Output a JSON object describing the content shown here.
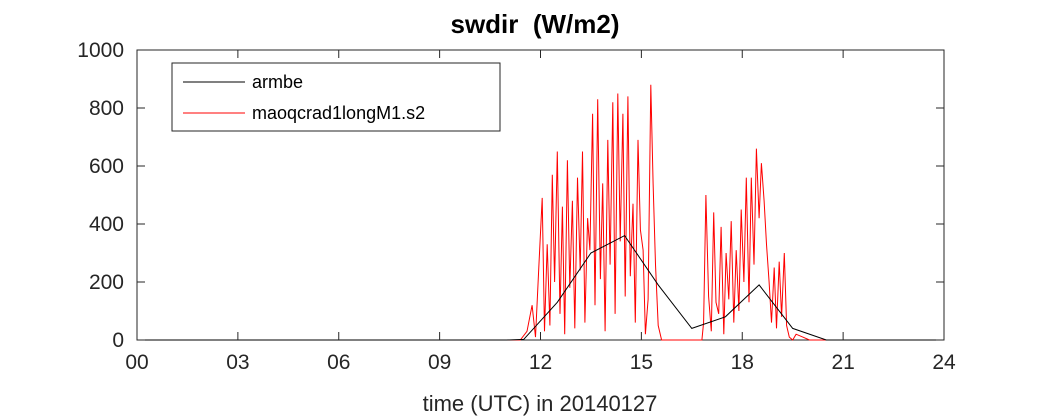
{
  "chart_data": {
    "type": "line",
    "title": "swdir  (W/m2)",
    "xlabel": "time (UTC) in 20140127",
    "ylabel": "",
    "xlim": [
      0,
      24
    ],
    "ylim": [
      0,
      1000
    ],
    "xticks": [
      0,
      3,
      6,
      9,
      12,
      15,
      18,
      21,
      24
    ],
    "xtick_labels": [
      "00",
      "03",
      "06",
      "09",
      "12",
      "15",
      "18",
      "21",
      "24"
    ],
    "yticks": [
      0,
      200,
      400,
      600,
      800,
      1000
    ],
    "ytick_labels": [
      "0",
      "200",
      "400",
      "600",
      "800",
      "1000"
    ],
    "grid": false,
    "legend_position": "top-left",
    "series": [
      {
        "name": "armbe",
        "color": "#000000",
        "x": [
          0,
          1,
          2,
          3,
          4,
          5,
          6,
          7,
          8,
          9,
          10,
          11,
          11.5,
          12.5,
          13.5,
          14.5,
          15.5,
          16.5,
          17.5,
          18.5,
          19.5,
          20.5,
          21,
          22,
          23,
          24
        ],
        "y": [
          0,
          0,
          0,
          0,
          0,
          0,
          0,
          0,
          0,
          0,
          0,
          0,
          2,
          130,
          300,
          360,
          190,
          40,
          80,
          190,
          40,
          0,
          0,
          0,
          0,
          0
        ]
      },
      {
        "name": "maoqcrad1longM1.s2",
        "color": "#ff0000",
        "x": [
          0,
          11.4,
          11.6,
          11.75,
          11.85,
          11.95,
          12.05,
          12.12,
          12.2,
          12.28,
          12.35,
          12.42,
          12.5,
          12.58,
          12.65,
          12.72,
          12.8,
          12.87,
          12.95,
          13.02,
          13.1,
          13.18,
          13.25,
          13.32,
          13.4,
          13.47,
          13.55,
          13.62,
          13.7,
          13.78,
          13.85,
          13.92,
          14.0,
          14.07,
          14.15,
          14.22,
          14.3,
          14.37,
          14.45,
          14.52,
          14.6,
          14.67,
          14.75,
          14.82,
          14.9,
          14.97,
          15.05,
          15.12,
          15.2,
          15.28,
          15.35,
          15.42,
          15.5,
          15.6,
          16.8,
          16.85,
          16.92,
          17.0,
          17.08,
          17.15,
          17.22,
          17.3,
          17.37,
          17.45,
          17.52,
          17.6,
          17.67,
          17.75,
          17.82,
          17.9,
          17.97,
          18.05,
          18.12,
          18.2,
          18.27,
          18.35,
          18.42,
          18.5,
          18.57,
          18.65,
          18.72,
          18.8,
          18.87,
          18.95,
          19.02,
          19.1,
          19.17,
          19.25,
          19.32,
          19.4,
          19.5,
          19.6,
          19.8,
          20.0,
          24
        ],
        "y": [
          0,
          0,
          30,
          120,
          10,
          250,
          490,
          30,
          330,
          50,
          570,
          200,
          650,
          90,
          460,
          20,
          620,
          180,
          480,
          40,
          560,
          240,
          650,
          60,
          420,
          310,
          780,
          120,
          830,
          210,
          540,
          30,
          690,
          260,
          820,
          90,
          850,
          340,
          780,
          150,
          840,
          220,
          470,
          60,
          690,
          380,
          310,
          20,
          140,
          880,
          540,
          260,
          50,
          0,
          0,
          60,
          500,
          150,
          30,
          440,
          130,
          90,
          390,
          20,
          300,
          140,
          410,
          60,
          310,
          100,
          450,
          200,
          560,
          130,
          560,
          260,
          660,
          420,
          610,
          480,
          330,
          200,
          60,
          250,
          40,
          270,
          80,
          300,
          50,
          10,
          0,
          20,
          10,
          0,
          0
        ]
      }
    ]
  }
}
